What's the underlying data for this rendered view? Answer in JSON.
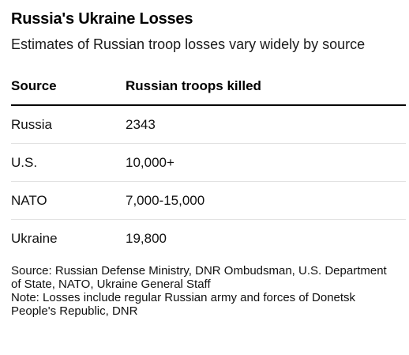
{
  "chart_data": {
    "type": "table",
    "title": "Russia's Ukraine Losses",
    "subtitle": "Estimates of Russian troop losses vary widely by source",
    "columns": [
      "Source",
      "Russian troops killed"
    ],
    "rows": [
      {
        "source": "Russia",
        "killed": "2343"
      },
      {
        "source": "U.S.",
        "killed": "10,000+"
      },
      {
        "source": "NATO",
        "killed": "7,000-15,000"
      },
      {
        "source": "Ukraine",
        "killed": "19,800"
      }
    ],
    "source_note": "Source: Russian Defense Ministry, DNR Ombudsman, U.S. Department of State, NATO, Ukraine General Staff",
    "note": "Note: Losses include regular Russian army and forces of Donetsk People's Republic, DNR"
  }
}
